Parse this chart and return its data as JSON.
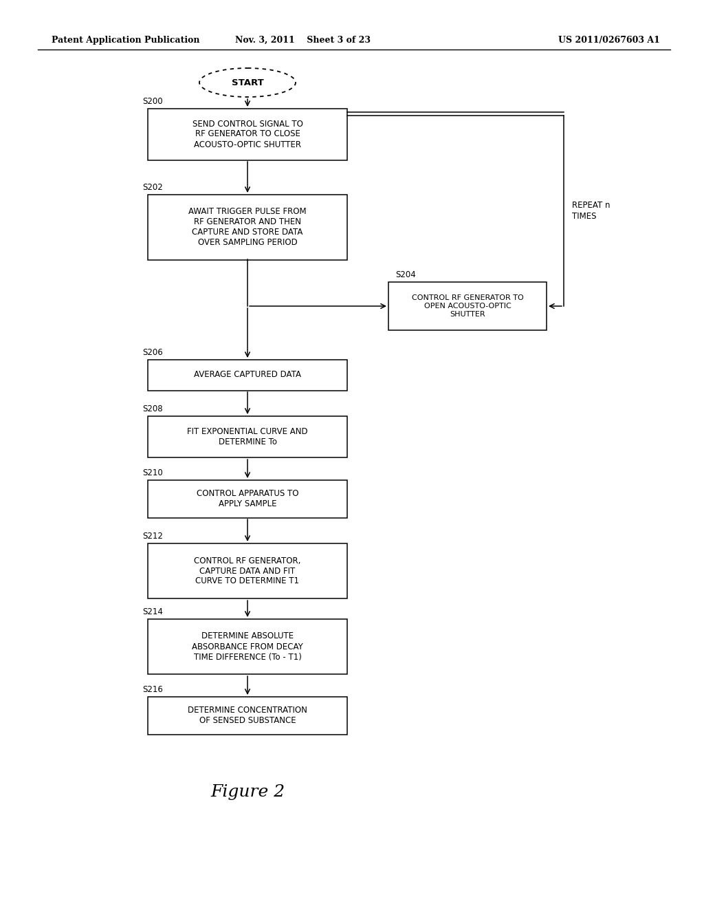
{
  "bg_color": "#ffffff",
  "header_left": "Patent Application Publication",
  "header_mid": "Nov. 3, 2011    Sheet 3 of 23",
  "header_right": "US 2011/0267603 A1",
  "figure_label": "Figure 2",
  "start_label": "START",
  "repeat_label": "REPEAT n\nTIMES",
  "steps": {
    "S200": {
      "label": "SEND CONTROL SIGNAL TO\nRF GENERATOR TO CLOSE\nACOUSTO-OPTIC SHUTTER"
    },
    "S202": {
      "label": "AWAIT TRIGGER PULSE FROM\nRF GENERATOR AND THEN\nCAPTURE AND STORE DATA\nOVER SAMPLING PERIOD"
    },
    "S204": {
      "label": "CONTROL RF GENERATOR TO\nOPEN ACOUSTO-OPTIC\nSHUTTER"
    },
    "S206": {
      "label": "AVERAGE CAPTURED DATA"
    },
    "S208": {
      "label": "FIT EXPONENTIAL CURVE AND\nDETERMINE To"
    },
    "S210": {
      "label": "CONTROL APPARATUS TO\nAPPLY SAMPLE"
    },
    "S212": {
      "label": "CONTROL RF GENERATOR,\nCAPTURE DATA AND FIT\nCURVE TO DETERMINE T1"
    },
    "S214": {
      "label": "DETERMINE ABSOLUTE\nABSORBANCE FROM DECAY\nTIME DIFFERENCE (To - T1)"
    },
    "S216": {
      "label": "DETERMINE CONCENTRATION\nOF SENSED SUBSTANCE"
    }
  }
}
